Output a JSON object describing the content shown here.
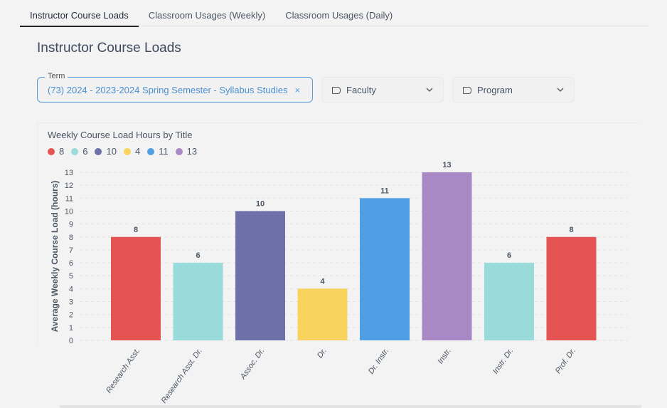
{
  "tabs": [
    {
      "label": "Instructor Course Loads",
      "active": true
    },
    {
      "label": "Classroom Usages (Weekly)"
    },
    {
      "label": "Classroom Usages (Daily)"
    }
  ],
  "page_title": "Instructor Course Loads",
  "filters": {
    "term_label": "Term",
    "term_value": "(73) 2024 - 2023-2024 Spring Semester - Syllabus Studies",
    "clear_icon": "×",
    "faculty": "Faculty",
    "program": "Program"
  },
  "chart_data": {
    "type": "bar",
    "title": "Weekly Course Load Hours by Title",
    "ylabel": "Average Weekly Course Load (hours)",
    "xlabel": "",
    "ylim": [
      0,
      13
    ],
    "yticks": [
      0,
      1,
      2,
      3,
      4,
      5,
      6,
      7,
      8,
      9,
      10,
      11,
      12,
      13
    ],
    "grid": true,
    "legend_position": "top-left",
    "legend": [
      {
        "name": "8",
        "color": "#e55353"
      },
      {
        "name": "6",
        "color": "#99dbda"
      },
      {
        "name": "10",
        "color": "#6e70a9"
      },
      {
        "name": "4",
        "color": "#f8d45e"
      },
      {
        "name": "11",
        "color": "#509ee3"
      },
      {
        "name": "13",
        "color": "#a989c5"
      }
    ],
    "categories": [
      "Research Asst.",
      "Research Asst. Dr.",
      "Assoc. Dr.",
      "Dr.",
      "Dr. Instr.",
      "Instr.",
      "Instr. Dr.",
      "Prof. Dr."
    ],
    "values": [
      8,
      6,
      10,
      4,
      11,
      13,
      6,
      8
    ],
    "colors": [
      "#e55353",
      "#99dbda",
      "#6e70a9",
      "#f8d45e",
      "#509ee3",
      "#a989c5",
      "#99dbda",
      "#e55353"
    ]
  }
}
